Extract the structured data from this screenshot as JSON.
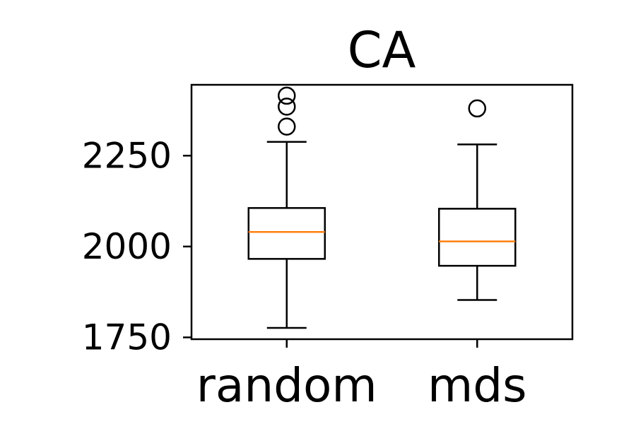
{
  "chart_data": {
    "type": "box",
    "title": "CA",
    "xlabel": "",
    "ylabel": "",
    "ylim": [
      1745,
      2445
    ],
    "yticks": [
      1750,
      2000,
      2250
    ],
    "categories": [
      "random",
      "mds"
    ],
    "series": [
      {
        "category": "random",
        "whisker_low": 1776,
        "q1": 1966,
        "median": 2040,
        "q3": 2106,
        "whisker_high": 2288,
        "outliers": [
          2330,
          2385,
          2415
        ]
      },
      {
        "category": "mds",
        "whisker_low": 1853,
        "q1": 1947,
        "median": 2014,
        "q3": 2104,
        "whisker_high": 2281,
        "outliers": [
          2380
        ]
      }
    ],
    "grid": false,
    "legend": "none",
    "colors": {
      "box": "#000000",
      "median": "#ff7f0e",
      "flier": "#000000"
    }
  }
}
